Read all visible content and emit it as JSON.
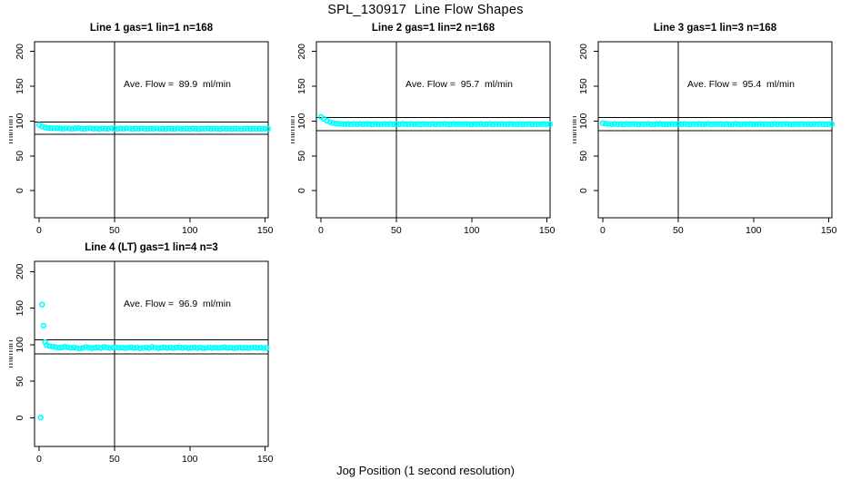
{
  "page": {
    "title": "SPL_130917  Line Flow Shapes",
    "x_axis_label": "Jog Position (1 second resolution)",
    "point_color": "#00ffff",
    "axis_color": "#000000"
  },
  "chart_data": [
    {
      "type": "scatter",
      "title": "Line 1 gas=1 lin=1 n=168",
      "ave_flow_label": "Ave. Flow =  89.9  ml/min",
      "ave_flow_ml_min": 89.9,
      "n": 168,
      "ylabel": "ml/min",
      "x_ticks": [
        0,
        50,
        100,
        150
      ],
      "y_ticks": [
        0,
        50,
        100,
        150,
        200
      ],
      "xlim": [
        -3,
        152
      ],
      "ylim": [
        -39,
        214
      ],
      "vline_x": 50,
      "hlines": [
        98.9,
        80.9
      ],
      "x_start": 0,
      "x_step": 2,
      "y_values": [
        94.5,
        92.2,
        90.8,
        90.1,
        89.8,
        89.6,
        89.9,
        89.4,
        89.1,
        89.7,
        89.3,
        88.9,
        89.5,
        89.8,
        89.2,
        88.8,
        89.4,
        89.7,
        89.0,
        89.3,
        88.7,
        89.5,
        89.1,
        88.9,
        89.6,
        89.2,
        88.8,
        89.4,
        89.0,
        89.7,
        89.2,
        88.7,
        89.3,
        88.9,
        89.5,
        89.1,
        88.8,
        89.2,
        89.0,
        89.6,
        88.9,
        89.1,
        88.7,
        89.3,
        89.0,
        88.8,
        89.4,
        89.1,
        88.9,
        89.2,
        88.7,
        89.3,
        89.0,
        88.6,
        89.1,
        88.9,
        89.4,
        88.8,
        89.2,
        89.0,
        88.6,
        89.3,
        88.9,
        89.1,
        88.7,
        89.2,
        88.9,
        88.6,
        89.0,
        89.2,
        88.8,
        89.1,
        88.9,
        89.0,
        88.7,
        89.0,
        88.8
      ],
      "extra_points": []
    },
    {
      "type": "scatter",
      "title": "Line 2 gas=1 lin=2 n=168",
      "ave_flow_label": "Ave. Flow =  95.7  ml/min",
      "ave_flow_ml_min": 95.7,
      "n": 168,
      "ylabel": "ml/min",
      "x_ticks": [
        0,
        50,
        100,
        150
      ],
      "y_ticks": [
        0,
        50,
        100,
        150,
        200
      ],
      "xlim": [
        -3,
        152
      ],
      "ylim": [
        -39,
        214
      ],
      "vline_x": 50,
      "hlines": [
        105.3,
        86.1
      ],
      "x_start": 0,
      "x_step": 2,
      "y_values": [
        105.8,
        103.2,
        100.4,
        98.4,
        97.2,
        96.5,
        96.1,
        95.8,
        95.6,
        96.0,
        95.5,
        95.9,
        95.4,
        95.8,
        95.6,
        96.0,
        95.7,
        95.3,
        95.9,
        95.6,
        95.4,
        95.8,
        95.5,
        95.9,
        95.3,
        95.7,
        95.5,
        96.0,
        95.6,
        95.4,
        95.8,
        95.5,
        95.7,
        95.3,
        95.9,
        95.6,
        95.4,
        95.8,
        95.5,
        95.7,
        95.4,
        95.9,
        95.6,
        95.3,
        95.8,
        95.5,
        95.7,
        95.4,
        95.8,
        95.6,
        95.3,
        95.7,
        95.5,
        95.9,
        95.4,
        95.6,
        95.8,
        95.3,
        95.7,
        95.5,
        95.8,
        95.4,
        95.6,
        95.9,
        95.5,
        95.3,
        95.7,
        95.6,
        95.4,
        95.8,
        95.5,
        95.7,
        95.4,
        95.6,
        95.8,
        95.5,
        95.6
      ],
      "extra_points": []
    },
    {
      "type": "scatter",
      "title": "Line 3 gas=1 lin=3 n=168",
      "ave_flow_label": "Ave. Flow =  95.4  ml/min",
      "ave_flow_ml_min": 95.4,
      "n": 168,
      "ylabel": "ml/min",
      "x_ticks": [
        0,
        50,
        100,
        150
      ],
      "y_ticks": [
        0,
        50,
        100,
        150,
        200
      ],
      "xlim": [
        -3,
        152
      ],
      "ylim": [
        -39,
        214
      ],
      "vline_x": 50,
      "hlines": [
        104.9,
        85.9
      ],
      "x_start": 0,
      "x_step": 2,
      "y_values": [
        97.0,
        96.2,
        95.8,
        95.5,
        95.9,
        95.4,
        95.7,
        95.3,
        95.8,
        95.5,
        95.9,
        95.6,
        95.3,
        95.7,
        95.4,
        95.8,
        95.5,
        95.2,
        95.7,
        95.9,
        95.4,
        95.6,
        95.3,
        95.8,
        95.5,
        95.7,
        95.4,
        95.9,
        95.6,
        95.3,
        95.7,
        95.5,
        95.8,
        95.4,
        95.6,
        95.9,
        95.3,
        95.7,
        95.5,
        95.8,
        95.4,
        95.7,
        95.5,
        95.3,
        95.8,
        95.6,
        95.4,
        95.7,
        95.5,
        95.9,
        95.3,
        95.6,
        95.8,
        95.4,
        95.7,
        95.5,
        95.3,
        95.8,
        95.6,
        95.4,
        95.7,
        95.9,
        95.5,
        95.3,
        95.7,
        95.6,
        95.8,
        95.4,
        95.6,
        95.5,
        95.7,
        95.4,
        95.8,
        95.6,
        95.5,
        95.7,
        95.6
      ],
      "extra_points": []
    },
    {
      "type": "scatter",
      "title": "Line 4 (LT) gas=1 lin=4 n=3",
      "ave_flow_label": "Ave. Flow =  96.9  ml/min",
      "ave_flow_ml_min": 96.9,
      "n": 3,
      "ylabel": "ml/min",
      "x_ticks": [
        0,
        50,
        100,
        150
      ],
      "y_ticks": [
        0,
        50,
        100,
        150,
        200
      ],
      "xlim": [
        -3,
        152
      ],
      "ylim": [
        -39,
        214
      ],
      "vline_x": 50,
      "hlines": [
        106.6,
        87.2
      ],
      "x_start": 5,
      "x_step": 2,
      "y_values": [
        99.5,
        98.2,
        97.6,
        96.8,
        95.9,
        96.4,
        97.2,
        96.6,
        95.7,
        96.3,
        95.4,
        94.8,
        95.6,
        96.7,
        96.1,
        95.2,
        95.9,
        96.5,
        95.6,
        97.0,
        96.3,
        95.4,
        96.0,
        96.6,
        95.7,
        96.2,
        95.3,
        95.9,
        96.5,
        95.6,
        96.1,
        95.2,
        95.8,
        96.3,
        95.5,
        96.9,
        96.1,
        95.3,
        95.9,
        96.4,
        95.6,
        96.2,
        95.4,
        96.0,
        96.6,
        95.7,
        96.1,
        95.3,
        95.8,
        96.4,
        95.5,
        96.0,
        95.2,
        95.7,
        96.3,
        95.6,
        96.1,
        95.4,
        95.9,
        96.5,
        95.6,
        96.0,
        95.3,
        95.8,
        96.2,
        95.5,
        96.1,
        95.4,
        95.9,
        96.3,
        95.6,
        96.0,
        95.5,
        95.8
      ],
      "extra_points": [
        [
          1,
          0.5
        ],
        [
          2,
          155.0
        ],
        [
          3,
          126.0
        ],
        [
          4,
          103.5
        ]
      ]
    }
  ]
}
